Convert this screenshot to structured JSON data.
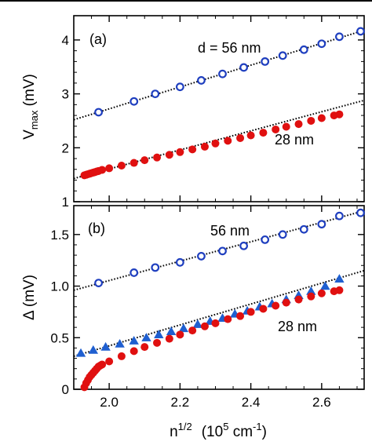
{
  "chart_data": [
    {
      "type": "scatter",
      "panel_label": "(a)",
      "ylabel": "V",
      "ylabel_sub": "max",
      "ylabel_unit": " (mV)",
      "xlim": [
        1.9,
        2.72
      ],
      "ylim": [
        1,
        4.45
      ],
      "yticks": [
        1,
        2,
        3,
        4
      ],
      "yticklabels": [
        "1",
        "2",
        "3",
        "4"
      ],
      "xticks": [
        2.0,
        2.2,
        2.4,
        2.6
      ],
      "grid": false,
      "series": [
        {
          "name": "d = 56 nm",
          "marker": "open-circle",
          "color": "#1f3fbf",
          "x": [
            1.97,
            2.07,
            2.13,
            2.2,
            2.26,
            2.32,
            2.38,
            2.44,
            2.49,
            2.55,
            2.6,
            2.65,
            2.71
          ],
          "y": [
            2.66,
            2.86,
            3.0,
            3.13,
            3.25,
            3.37,
            3.49,
            3.6,
            3.71,
            3.82,
            3.93,
            4.06,
            4.16
          ],
          "fit": {
            "x": [
              1.9,
              2.72
            ],
            "y": [
              2.52,
              4.18
            ]
          }
        },
        {
          "name": "28 nm",
          "marker": "filled-circle",
          "color": "#e01010",
          "x": [
            1.93,
            1.935,
            1.94,
            1.945,
            1.95,
            1.955,
            1.96,
            1.965,
            1.97,
            1.98,
            2.0,
            2.035,
            2.07,
            2.1,
            2.135,
            2.17,
            2.2,
            2.235,
            2.27,
            2.3,
            2.335,
            2.37,
            2.4,
            2.435,
            2.47,
            2.5,
            2.535,
            2.57,
            2.6,
            2.635,
            2.65
          ],
          "y": [
            1.49,
            1.5,
            1.51,
            1.52,
            1.53,
            1.54,
            1.55,
            1.56,
            1.57,
            1.59,
            1.62,
            1.67,
            1.72,
            1.77,
            1.82,
            1.87,
            1.92,
            1.97,
            2.02,
            2.08,
            2.13,
            2.18,
            2.23,
            2.28,
            2.34,
            2.39,
            2.44,
            2.5,
            2.55,
            2.6,
            2.62
          ],
          "fit": {
            "x": [
              1.9,
              2.72
            ],
            "y": [
              1.43,
              2.88
            ]
          }
        }
      ],
      "annotations": [
        "d = 56 nm",
        "28 nm"
      ]
    },
    {
      "type": "scatter",
      "panel_label": "(b)",
      "ylabel": "Δ (mV)",
      "xlabel": "n",
      "xlabel_sup": "1/2",
      "xlabel_unit_pre": "(10",
      "xlabel_unit_sup": "5",
      "xlabel_unit_post": " cm",
      "xlabel_unit_sup2": "-1",
      "xlabel_unit_end": ")",
      "xlim": [
        1.9,
        2.72
      ],
      "ylim": [
        0,
        1.78
      ],
      "xticks": [
        2.0,
        2.2,
        2.4,
        2.6
      ],
      "xticklabels": [
        "2.0",
        "2.2",
        "2.4",
        "2.6"
      ],
      "yticks": [
        0,
        0.5,
        1.0,
        1.5
      ],
      "yticklabels": [
        "0",
        "0.5",
        "1.0",
        "1.5"
      ],
      "grid": false,
      "series": [
        {
          "name": "56 nm",
          "marker": "open-circle",
          "color": "#1f3fbf",
          "x": [
            1.97,
            2.07,
            2.13,
            2.2,
            2.26,
            2.32,
            2.38,
            2.44,
            2.49,
            2.55,
            2.6,
            2.65,
            2.71
          ],
          "y": [
            1.03,
            1.13,
            1.18,
            1.23,
            1.29,
            1.34,
            1.39,
            1.45,
            1.5,
            1.55,
            1.6,
            1.68,
            1.71
          ],
          "fit": {
            "x": [
              1.9,
              2.72
            ],
            "y": [
              0.96,
              1.73
            ]
          }
        },
        {
          "name": "",
          "marker": "filled-triangle",
          "color": "#1f5fd0",
          "x": [
            1.92,
            1.955,
            1.99,
            2.03,
            2.07,
            2.105,
            2.14,
            2.175,
            2.21,
            2.25,
            2.285,
            2.32,
            2.355,
            2.39,
            2.425,
            2.46,
            2.5,
            2.535,
            2.57,
            2.61,
            2.65
          ],
          "y": [
            0.35,
            0.38,
            0.41,
            0.44,
            0.47,
            0.5,
            0.53,
            0.56,
            0.59,
            0.63,
            0.66,
            0.69,
            0.73,
            0.76,
            0.8,
            0.83,
            0.87,
            0.91,
            0.95,
            1.0,
            1.07
          ],
          "fit": {
            "x": [
              1.9,
              2.72
            ],
            "y": [
              0.32,
              1.15
            ]
          }
        },
        {
          "name": "28 nm",
          "marker": "filled-circle",
          "color": "#e01010",
          "x": [
            1.93,
            1.935,
            1.94,
            1.945,
            1.95,
            1.955,
            1.96,
            1.965,
            1.97,
            1.975,
            1.98,
            2.0,
            2.035,
            2.07,
            2.1,
            2.135,
            2.17,
            2.2,
            2.235,
            2.27,
            2.3,
            2.335,
            2.37,
            2.4,
            2.435,
            2.47,
            2.5,
            2.535,
            2.57,
            2.6,
            2.635,
            2.65
          ],
          "y": [
            0.02,
            0.06,
            0.09,
            0.12,
            0.14,
            0.16,
            0.18,
            0.2,
            0.22,
            0.23,
            0.24,
            0.27,
            0.32,
            0.37,
            0.41,
            0.45,
            0.49,
            0.53,
            0.57,
            0.61,
            0.64,
            0.68,
            0.71,
            0.75,
            0.78,
            0.81,
            0.84,
            0.87,
            0.9,
            0.93,
            0.95,
            0.96
          ],
          "fit": null
        }
      ],
      "annotations": [
        "56 nm",
        "28 nm"
      ]
    }
  ]
}
